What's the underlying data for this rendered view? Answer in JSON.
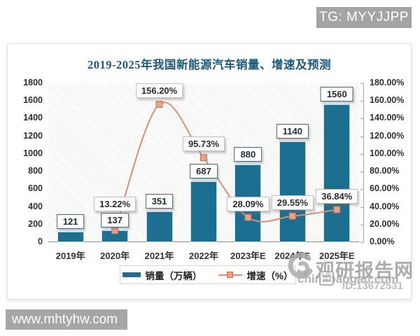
{
  "page": {
    "tg_badge": "TG: MYYJJPP",
    "site_badge": "www.mhtyhw.com"
  },
  "watermark": {
    "brand": "观研报告网",
    "domain": "chinabaogao.com",
    "id_text": "ID:13672531"
  },
  "chart_data": {
    "type": "combo-bar-line",
    "title": "2019-2025年我国新能源汽车销量、增速及预测",
    "categories": [
      "2019年",
      "2020年",
      "2021年",
      "2022年",
      "2023年E",
      "2024年E",
      "2025年E"
    ],
    "series": [
      {
        "name": "销量（万辆）",
        "type": "bar",
        "axis": "left",
        "color": "#1d6f91",
        "values": [
          121,
          137,
          351,
          687,
          880,
          1140,
          1560
        ],
        "labels": [
          "121",
          "137",
          "351",
          "687",
          "880",
          "1140",
          "1560"
        ]
      },
      {
        "name": "增速（%）",
        "type": "line",
        "axis": "right",
        "color": "#d98f74",
        "values": [
          null,
          13.22,
          156.2,
          95.73,
          28.09,
          29.55,
          36.84
        ],
        "labels": [
          null,
          "13.22%",
          "156.20%",
          "95.73%",
          "28.09%",
          "29.55%",
          "36.84%"
        ]
      }
    ],
    "left_axis": {
      "min": 0,
      "max": 1800,
      "ticks": [
        "0",
        "200",
        "400",
        "600",
        "800",
        "1000",
        "1200",
        "1400",
        "1600",
        "1800"
      ]
    },
    "right_axis": {
      "min": 0,
      "max": 180,
      "ticks": [
        "0.00%",
        "20.00%",
        "40.00%",
        "60.00%",
        "80.00%",
        "100.00%",
        "120.00%",
        "140.00%",
        "160.00%",
        "180.00%"
      ]
    },
    "legend_position": "bottom",
    "grid": false,
    "plot_background": "diagonal-hatch"
  }
}
